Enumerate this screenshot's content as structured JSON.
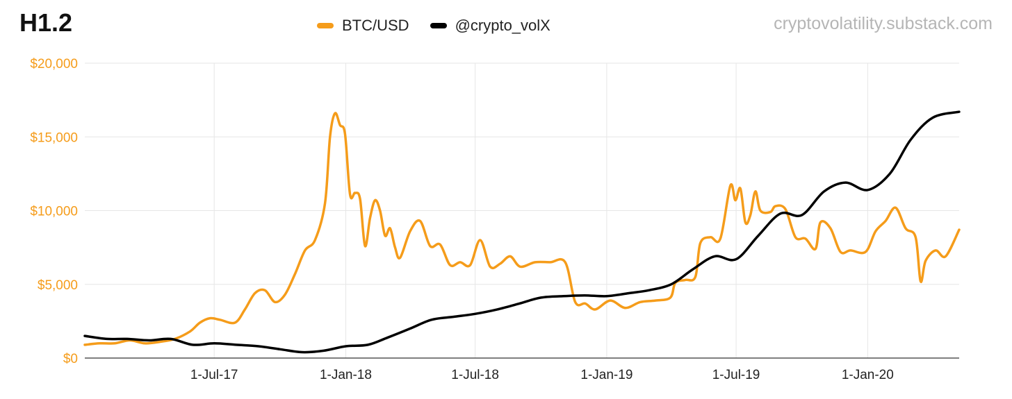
{
  "header": {
    "title": "H1.2",
    "source": "cryptovolatility.substack.com"
  },
  "colors": {
    "btc": "#f59c1a",
    "volx": "#000000",
    "grid": "#e6e6e6",
    "axis": "#f59c1a"
  },
  "chart_data": {
    "type": "line",
    "title": "H1.2",
    "legend_position": "top-center",
    "grid": true,
    "x_tick_labels": [
      "1-Jul-17",
      "1-Jan-18",
      "1-Jul-18",
      "1-Jan-19",
      "1-Jul-19",
      "1-Jan-20"
    ],
    "x_tick_dates": [
      "2017-07-01",
      "2018-01-01",
      "2018-07-01",
      "2019-01-01",
      "2019-07-01",
      "2020-01-01"
    ],
    "xlim": [
      "2017-01-01",
      "2020-05-08"
    ],
    "ylim": [
      0,
      20000
    ],
    "y_tick_values": [
      0,
      5000,
      10000,
      15000,
      20000
    ],
    "y_tick_labels": [
      "$0",
      "$5,000",
      "$10,000",
      "$15,000",
      "$20,000"
    ],
    "series": [
      {
        "name": "BTC/USD",
        "color": "#f59c1a",
        "points": [
          [
            "2017-01-01",
            900
          ],
          [
            "2017-01-22",
            1000
          ],
          [
            "2017-02-12",
            1000
          ],
          [
            "2017-03-05",
            1200
          ],
          [
            "2017-03-26",
            1000
          ],
          [
            "2017-04-16",
            1100
          ],
          [
            "2017-05-07",
            1300
          ],
          [
            "2017-05-28",
            1800
          ],
          [
            "2017-06-11",
            2400
          ],
          [
            "2017-06-25",
            2700
          ],
          [
            "2017-07-09",
            2600
          ],
          [
            "2017-07-30",
            2400
          ],
          [
            "2017-08-13",
            3300
          ],
          [
            "2017-08-27",
            4400
          ],
          [
            "2017-09-10",
            4600
          ],
          [
            "2017-09-24",
            3800
          ],
          [
            "2017-10-08",
            4300
          ],
          [
            "2017-10-22",
            5700
          ],
          [
            "2017-11-05",
            7300
          ],
          [
            "2017-11-19",
            8000
          ],
          [
            "2017-12-03",
            10500
          ],
          [
            "2017-12-10",
            15000
          ],
          [
            "2017-12-17",
            16600
          ],
          [
            "2017-12-24",
            15800
          ],
          [
            "2017-12-31",
            15200
          ],
          [
            "2018-01-07",
            11100
          ],
          [
            "2018-01-14",
            11200
          ],
          [
            "2018-01-21",
            10800
          ],
          [
            "2018-01-28",
            7600
          ],
          [
            "2018-02-04",
            9500
          ],
          [
            "2018-02-11",
            10700
          ],
          [
            "2018-02-18",
            10000
          ],
          [
            "2018-02-25",
            8300
          ],
          [
            "2018-03-04",
            8800
          ],
          [
            "2018-03-11",
            7500
          ],
          [
            "2018-03-18",
            6800
          ],
          [
            "2018-04-01",
            8600
          ],
          [
            "2018-04-15",
            9300
          ],
          [
            "2018-04-29",
            7600
          ],
          [
            "2018-05-13",
            7700
          ],
          [
            "2018-05-27",
            6300
          ],
          [
            "2018-06-10",
            6500
          ],
          [
            "2018-06-24",
            6300
          ],
          [
            "2018-07-08",
            8000
          ],
          [
            "2018-07-22",
            6200
          ],
          [
            "2018-08-05",
            6400
          ],
          [
            "2018-08-19",
            6900
          ],
          [
            "2018-09-02",
            6200
          ],
          [
            "2018-09-23",
            6500
          ],
          [
            "2018-10-14",
            6500
          ],
          [
            "2018-11-04",
            6500
          ],
          [
            "2018-11-18",
            3800
          ],
          [
            "2018-12-02",
            3700
          ],
          [
            "2018-12-16",
            3300
          ],
          [
            "2019-01-06",
            3900
          ],
          [
            "2019-01-27",
            3400
          ],
          [
            "2019-02-17",
            3800
          ],
          [
            "2019-03-10",
            3900
          ],
          [
            "2019-03-31",
            4100
          ],
          [
            "2019-04-07",
            5100
          ],
          [
            "2019-04-21",
            5300
          ],
          [
            "2019-05-05",
            5500
          ],
          [
            "2019-05-12",
            7800
          ],
          [
            "2019-05-26",
            8200
          ],
          [
            "2019-06-09",
            8100
          ],
          [
            "2019-06-23",
            11700
          ],
          [
            "2019-06-30",
            10700
          ],
          [
            "2019-07-07",
            11500
          ],
          [
            "2019-07-14",
            9200
          ],
          [
            "2019-07-21",
            9700
          ],
          [
            "2019-07-28",
            11300
          ],
          [
            "2019-08-04",
            10000
          ],
          [
            "2019-08-18",
            9900
          ],
          [
            "2019-08-25",
            10300
          ],
          [
            "2019-09-08",
            10100
          ],
          [
            "2019-09-22",
            8200
          ],
          [
            "2019-10-06",
            8100
          ],
          [
            "2019-10-20",
            7400
          ],
          [
            "2019-10-27",
            9200
          ],
          [
            "2019-11-10",
            8800
          ],
          [
            "2019-11-24",
            7200
          ],
          [
            "2019-12-08",
            7300
          ],
          [
            "2019-12-29",
            7200
          ],
          [
            "2020-01-12",
            8600
          ],
          [
            "2020-01-26",
            9300
          ],
          [
            "2020-02-09",
            10200
          ],
          [
            "2020-02-23",
            8800
          ],
          [
            "2020-03-08",
            8200
          ],
          [
            "2020-03-15",
            5200
          ],
          [
            "2020-03-22",
            6600
          ],
          [
            "2020-04-05",
            7300
          ],
          [
            "2020-04-19",
            6900
          ],
          [
            "2020-05-08",
            8700
          ]
        ]
      },
      {
        "name": "@crypto_volX",
        "color": "#000000",
        "points": [
          [
            "2017-01-01",
            1500
          ],
          [
            "2017-02-01",
            1300
          ],
          [
            "2017-03-01",
            1300
          ],
          [
            "2017-04-01",
            1200
          ],
          [
            "2017-05-01",
            1300
          ],
          [
            "2017-06-01",
            900
          ],
          [
            "2017-07-01",
            1000
          ],
          [
            "2017-08-01",
            900
          ],
          [
            "2017-09-01",
            800
          ],
          [
            "2017-10-01",
            600
          ],
          [
            "2017-11-01",
            400
          ],
          [
            "2017-12-01",
            500
          ],
          [
            "2018-01-01",
            800
          ],
          [
            "2018-02-01",
            900
          ],
          [
            "2018-03-01",
            1400
          ],
          [
            "2018-04-01",
            2000
          ],
          [
            "2018-05-01",
            2600
          ],
          [
            "2018-06-01",
            2800
          ],
          [
            "2018-07-01",
            3000
          ],
          [
            "2018-08-01",
            3300
          ],
          [
            "2018-09-01",
            3700
          ],
          [
            "2018-10-01",
            4100
          ],
          [
            "2018-11-01",
            4200
          ],
          [
            "2018-12-01",
            4250
          ],
          [
            "2019-01-01",
            4200
          ],
          [
            "2019-02-01",
            4400
          ],
          [
            "2019-03-01",
            4600
          ],
          [
            "2019-04-01",
            5000
          ],
          [
            "2019-05-01",
            6000
          ],
          [
            "2019-06-01",
            6900
          ],
          [
            "2019-07-01",
            6700
          ],
          [
            "2019-08-01",
            8300
          ],
          [
            "2019-09-01",
            9800
          ],
          [
            "2019-10-01",
            9700
          ],
          [
            "2019-11-01",
            11300
          ],
          [
            "2019-12-01",
            11900
          ],
          [
            "2020-01-01",
            11400
          ],
          [
            "2020-02-01",
            12500
          ],
          [
            "2020-03-01",
            14800
          ],
          [
            "2020-04-01",
            16300
          ],
          [
            "2020-05-08",
            16700
          ]
        ]
      }
    ]
  }
}
